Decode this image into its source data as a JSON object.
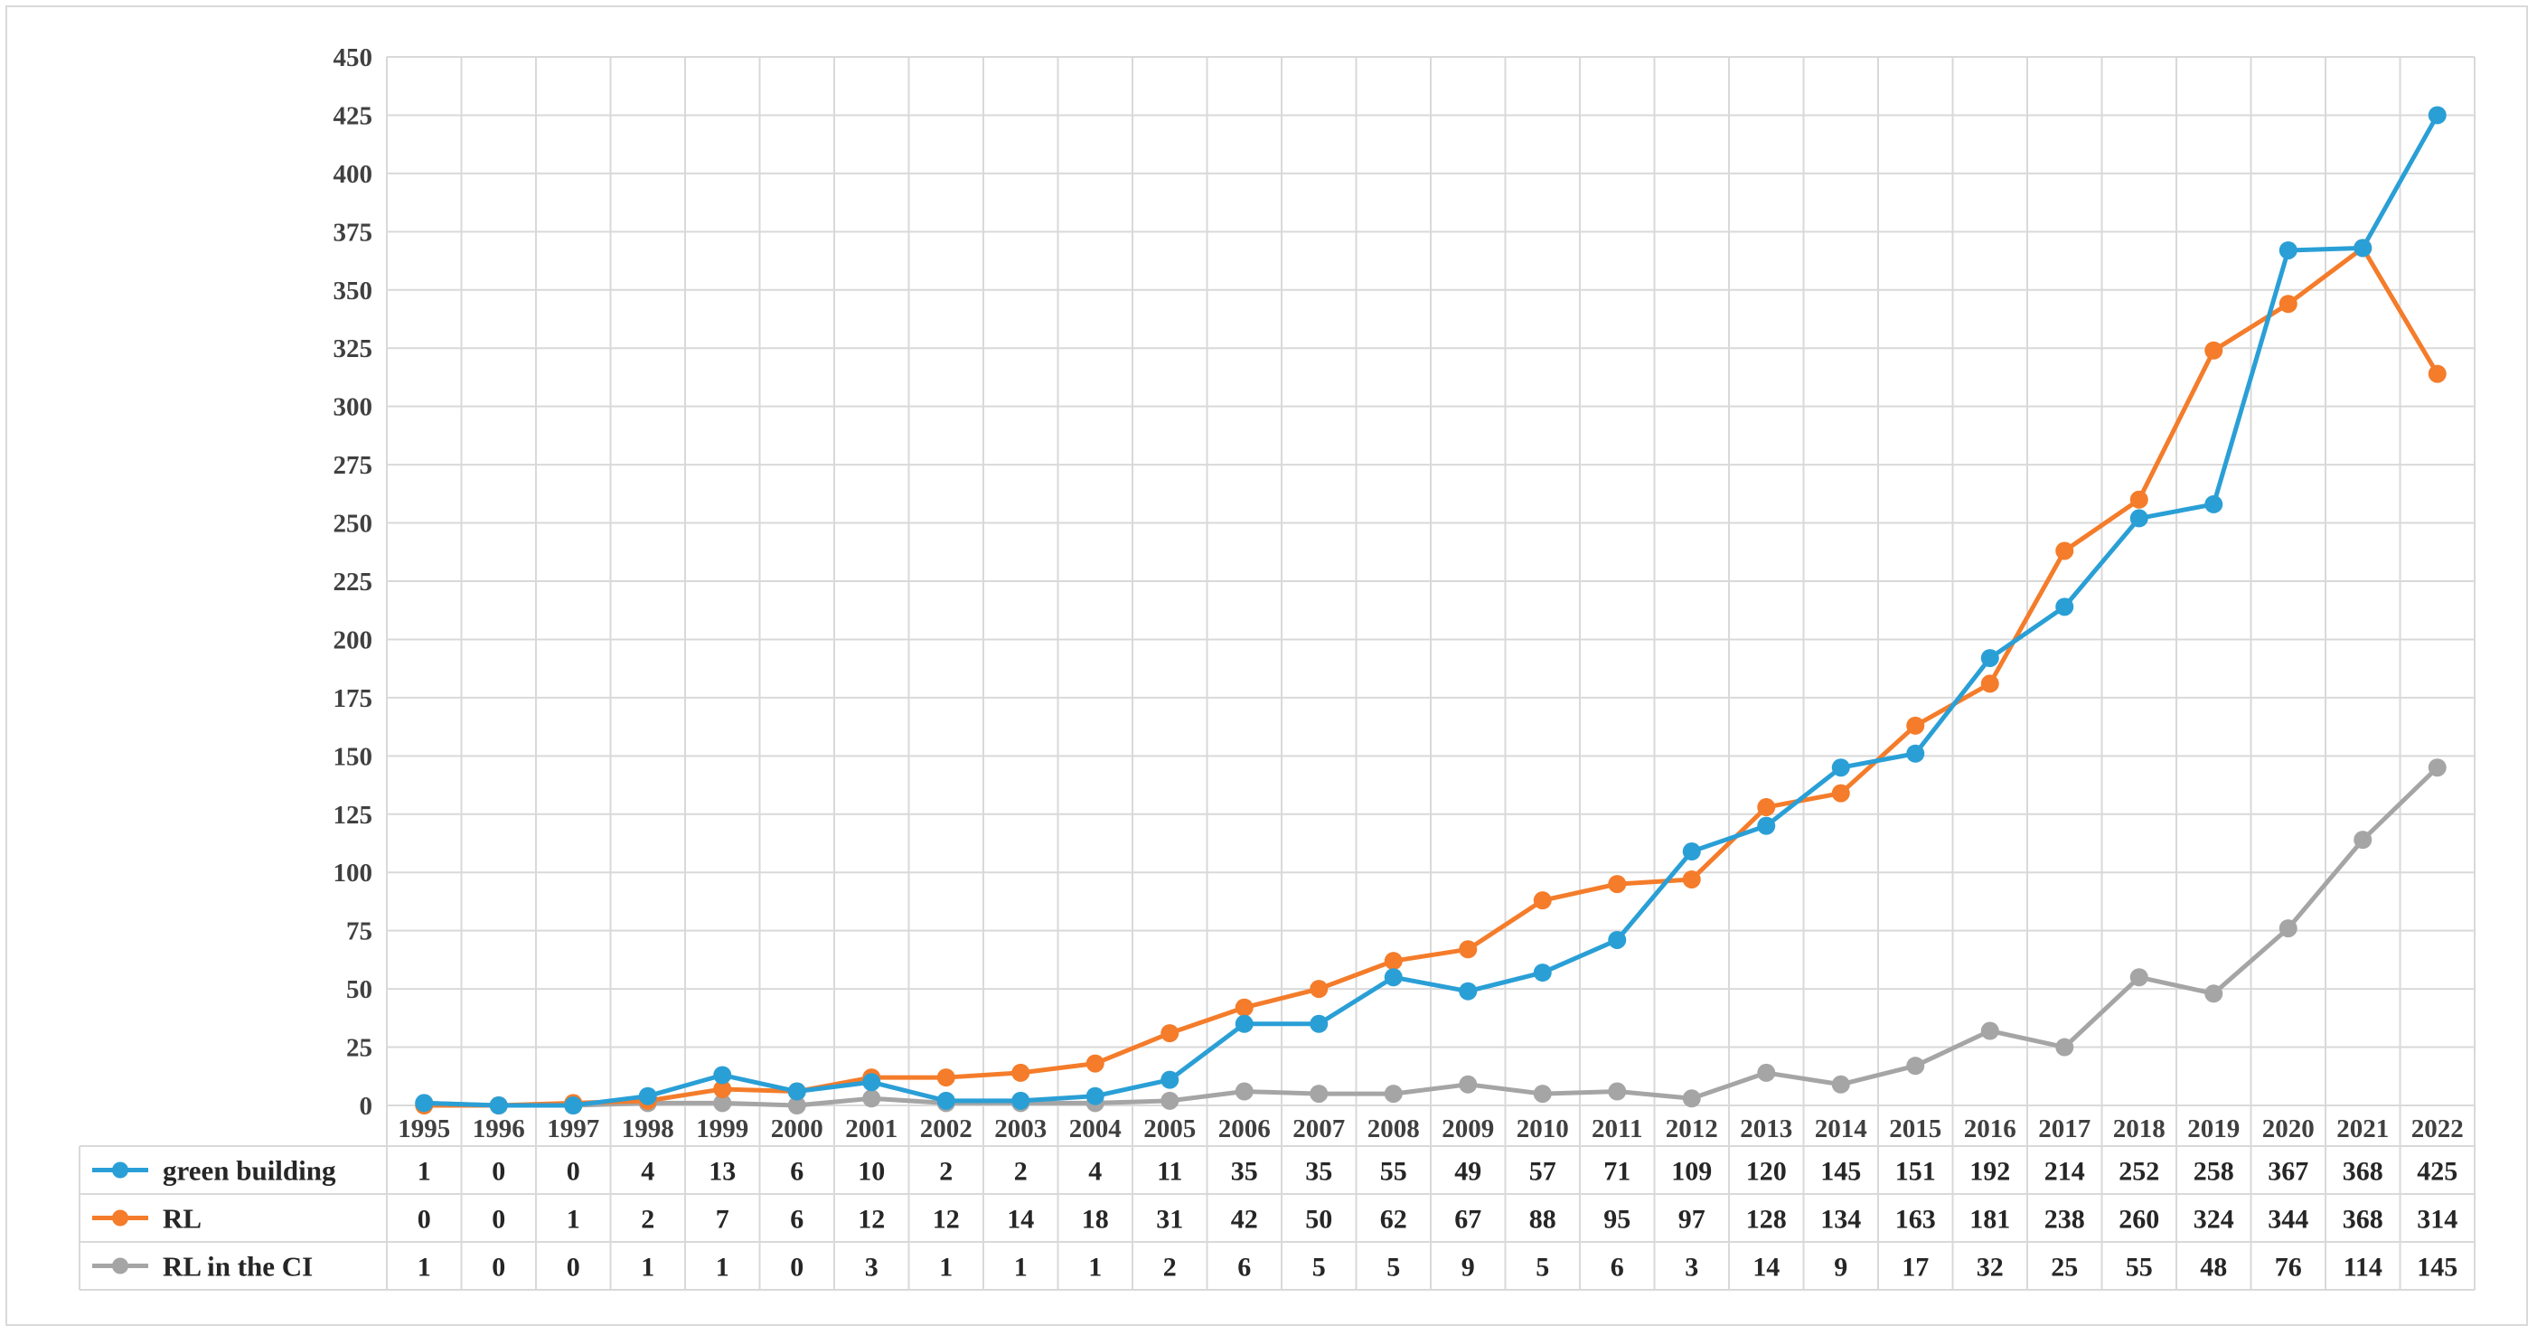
{
  "chart_data": {
    "type": "line",
    "categories": [
      "1995",
      "1996",
      "1997",
      "1998",
      "1999",
      "2000",
      "2001",
      "2002",
      "2003",
      "2004",
      "2005",
      "2006",
      "2007",
      "2008",
      "2009",
      "2010",
      "2011",
      "2012",
      "2013",
      "2014",
      "2015",
      "2016",
      "2017",
      "2018",
      "2019",
      "2020",
      "2021",
      "2022"
    ],
    "series": [
      {
        "name": "green building",
        "color": "#2a9fd6",
        "values": [
          1,
          0,
          0,
          4,
          13,
          6,
          10,
          2,
          2,
          4,
          11,
          35,
          35,
          55,
          49,
          57,
          71,
          109,
          120,
          145,
          151,
          192,
          214,
          252,
          258,
          367,
          368,
          425
        ]
      },
      {
        "name": "RL",
        "color": "#f47c2a",
        "values": [
          0,
          0,
          1,
          2,
          7,
          6,
          12,
          12,
          14,
          18,
          31,
          42,
          50,
          62,
          67,
          88,
          95,
          97,
          128,
          134,
          163,
          181,
          238,
          260,
          324,
          344,
          368,
          314
        ]
      },
      {
        "name": "RL in the CI",
        "color": "#a5a5a5",
        "values": [
          1,
          0,
          0,
          1,
          1,
          0,
          3,
          1,
          1,
          1,
          2,
          6,
          5,
          5,
          9,
          5,
          6,
          3,
          14,
          9,
          17,
          32,
          25,
          55,
          48,
          76,
          114,
          145
        ]
      }
    ],
    "ylim": [
      0,
      450
    ],
    "yticks": [
      0,
      25,
      50,
      75,
      100,
      125,
      150,
      175,
      200,
      225,
      250,
      275,
      300,
      325,
      350,
      375,
      400,
      425,
      450
    ],
    "grid": true,
    "legend": "data table below chart",
    "gridColor": "#d9d9d9"
  }
}
